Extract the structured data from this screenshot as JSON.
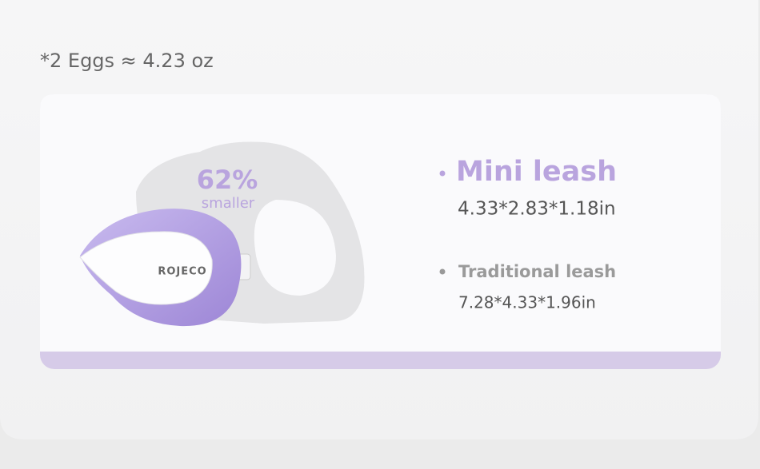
{
  "note": "*2 Eggs ≈ 4.23 oz",
  "badge": {
    "percent": "62%",
    "caption": "smaller"
  },
  "brand": "ROJECO",
  "items": [
    {
      "name": "Mini leash",
      "size": "4.33*2.83*1.18in"
    },
    {
      "name": "Traditional leash",
      "size": "7.28*4.33*1.96in"
    }
  ]
}
